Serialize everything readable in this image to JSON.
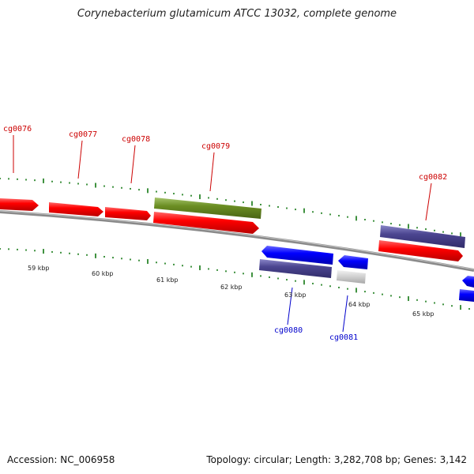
{
  "title": "Corynebacterium glutamicum ATCC 13032, complete genome",
  "footer": {
    "accession": "Accession: NC_006958",
    "summary": "Topology: circular; Length: 3,282,708 bp; Genes: 3,142"
  },
  "colors": {
    "forward_cds": "#ff0000",
    "reverse_cds": "#0000ff",
    "forward_gene": "#6b8e23",
    "reverse_gene": "#4b4590",
    "other": "#c8c8c8",
    "forward_label": "#cc0000",
    "reverse_label": "#0000cc",
    "backbone": "#888888",
    "tick": "#117711"
  },
  "scale_labels": [
    "59 kbp",
    "60 kbp",
    "61 kbp",
    "62 kbp",
    "63 kbp",
    "64 kbp",
    "65 kbp"
  ],
  "forward_genes": [
    "cg0076",
    "cg0077",
    "cg0078",
    "cg0079",
    "cg0082"
  ],
  "reverse_genes": [
    "cg0080",
    "cg0081"
  ]
}
